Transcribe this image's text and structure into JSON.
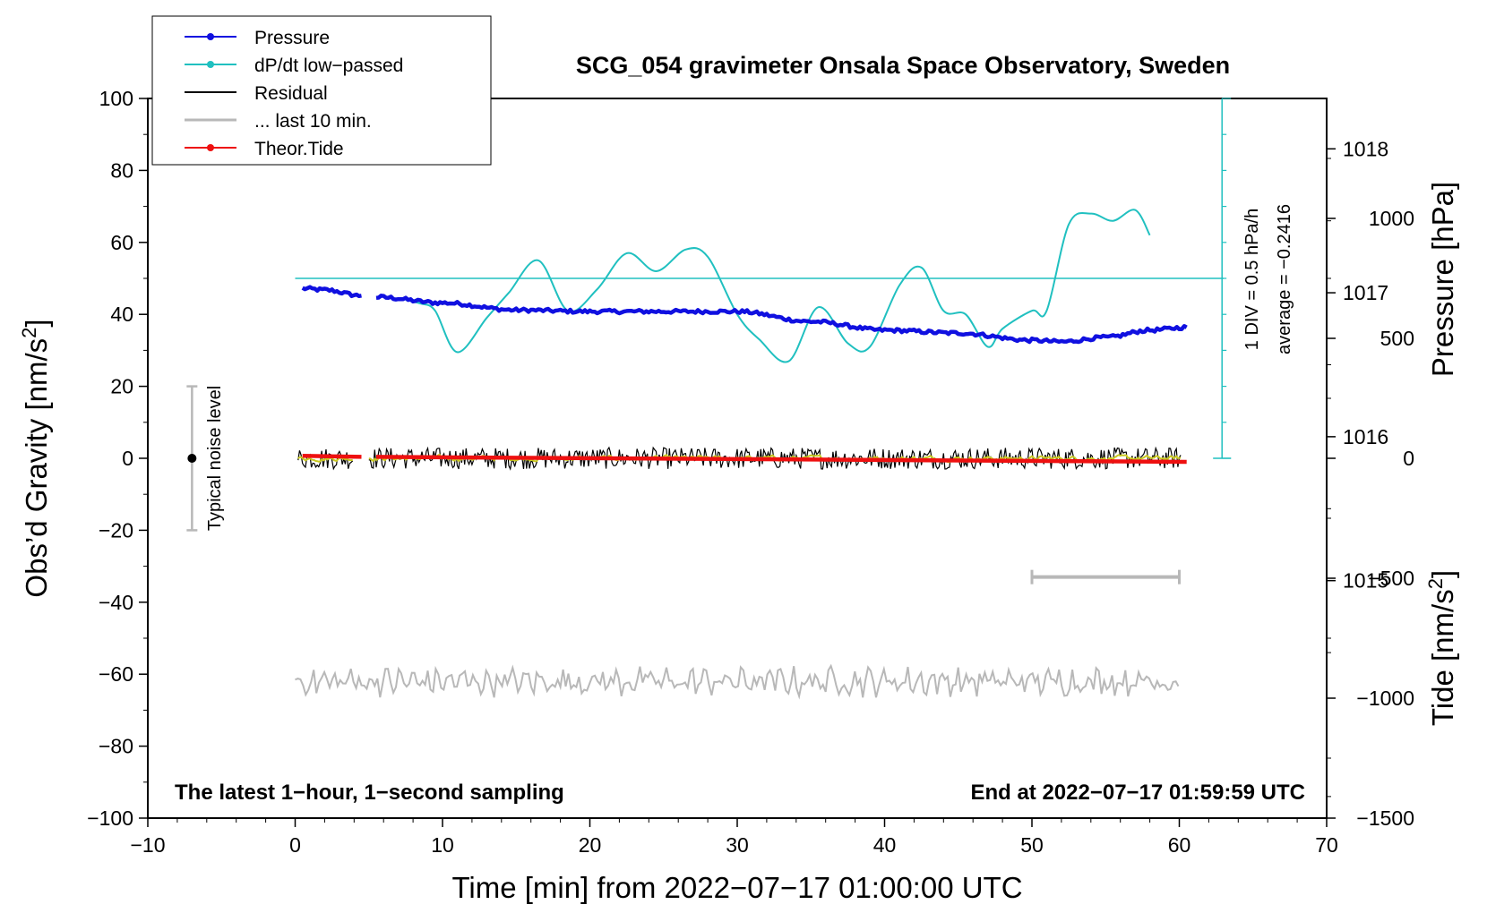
{
  "chart_data": {
    "type": "line",
    "title": "SCG_054 gravimeter Onsala Space Observatory, Sweden",
    "xlabel": "Time [min] from 2022−07−17 01:00:00 UTC",
    "ylabel_left": "Obs’d Gravity [nm/s",
    "ylabel_left_sup": "2",
    "ylabel_left_end": "]",
    "ylabel_right_pressure": "Pressure [hPa]",
    "ylabel_right_tide": "Tide [nm/s",
    "ylabel_right_tide_sup": "2",
    "ylabel_right_tide_end": "]",
    "xlim": [
      -10,
      70
    ],
    "ylim": [
      -100,
      100
    ],
    "pressure_lim": [
      1013.35,
      1018.35
    ],
    "tide_lim": [
      -1500,
      1500
    ],
    "x_ticks": [
      {
        "v": -10,
        "t": "−10"
      },
      {
        "v": 0,
        "t": "0"
      },
      {
        "v": 10,
        "t": "10"
      },
      {
        "v": 20,
        "t": "20"
      },
      {
        "v": 30,
        "t": "30"
      },
      {
        "v": 40,
        "t": "40"
      },
      {
        "v": 50,
        "t": "50"
      },
      {
        "v": 60,
        "t": "60"
      },
      {
        "v": 70,
        "t": "70"
      }
    ],
    "y_ticks": [
      {
        "v": 100,
        "t": "100"
      },
      {
        "v": 80,
        "t": "80"
      },
      {
        "v": 60,
        "t": "60"
      },
      {
        "v": 40,
        "t": "40"
      },
      {
        "v": 20,
        "t": "20"
      },
      {
        "v": 0,
        "t": "0"
      },
      {
        "v": -20,
        "t": "−20"
      },
      {
        "v": -40,
        "t": "−40"
      },
      {
        "v": -60,
        "t": "−60"
      },
      {
        "v": -80,
        "t": "−80"
      },
      {
        "v": -100,
        "t": "−100"
      }
    ],
    "pressure_ticks": [
      {
        "v": 1018,
        "t": "1018"
      },
      {
        "v": 1017,
        "t": "1017"
      },
      {
        "v": 1016,
        "t": "1016"
      },
      {
        "v": 1015,
        "t": "1015"
      }
    ],
    "tide_ticks": [
      {
        "v": 1000,
        "t": "1000"
      },
      {
        "v": 500,
        "t": "500"
      },
      {
        "v": 0,
        "t": "0"
      },
      {
        "v": -500,
        "t": "−500"
      },
      {
        "v": -1000,
        "t": "−1000"
      },
      {
        "v": -1500,
        "t": "−1500"
      }
    ],
    "legend": {
      "placement": "top-left",
      "entries": [
        {
          "label": "Pressure",
          "color": "#1010e0",
          "marker": true
        },
        {
          "label": "dP/dt low−passed",
          "color": "#20c0c0",
          "marker": true
        },
        {
          "label": "Residual",
          "color": "#000000",
          "marker": false
        },
        {
          "label": "... last 10 min.",
          "color": "#b8b8b8",
          "marker": false
        },
        {
          "label": "Theor.Tide",
          "color": "#ee1010",
          "marker": true
        }
      ]
    },
    "series": [
      {
        "name": "Pressure",
        "color": "#1010e0",
        "units": "hPa",
        "segments": [
          {
            "x": [
              0.5,
              2,
              4.5
            ],
            "y": [
              1017.03,
              1017.02,
              1016.98
            ]
          },
          {
            "x": [
              5.5,
              10,
              15,
              20,
              25,
              30,
              35,
              40,
              45,
              50,
              52,
              55,
              58,
              60.5
            ],
            "y": [
              1016.97,
              1016.93,
              1016.88,
              1016.87,
              1016.87,
              1016.87,
              1016.8,
              1016.74,
              1016.72,
              1016.67,
              1016.66,
              1016.69,
              1016.74,
              1016.76
            ]
          }
        ]
      },
      {
        "name": "dP/dt low−passed",
        "color": "#20c0c0",
        "units": "nm/s² plot scale (50 = average, 1 DIV = 0.5 hPa/h)",
        "average_line": 50,
        "x": [
          7.5,
          8.5,
          9.5,
          11,
          13,
          14.5,
          16.5,
          18.5,
          20.5,
          22.5,
          24.5,
          26.5,
          28,
          30,
          31.5,
          33.5,
          35.5,
          37.5,
          39,
          41,
          42.5,
          44,
          45.5,
          47,
          48,
          50,
          51,
          52.5,
          54,
          55.5,
          57,
          58
        ],
        "y": [
          44,
          43,
          41,
          29.5,
          39,
          46,
          55,
          41,
          47,
          57,
          52,
          58,
          56,
          40,
          33,
          27,
          42,
          32,
          31,
          48,
          53,
          41,
          40,
          31,
          36,
          41,
          41,
          65,
          68,
          66,
          69,
          62
        ]
      },
      {
        "name": "Residual",
        "color": "#000000",
        "units": "nm/s²",
        "segments": [
          {
            "x_start": 0.2,
            "x_end": 4.0
          },
          {
            "x_start": 5.0,
            "x_end": 60.2
          }
        ],
        "level": 0,
        "noise_amplitude": 3,
        "smoothed_color": "#c8c820"
      },
      {
        "name": "... last 10 min.",
        "color": "#b8b8b8",
        "units": "nm/s² (plotted offset)",
        "x_start": 0,
        "x_end": 60,
        "level": -62,
        "noise_amplitude": 3,
        "bracket": {
          "x_start": 50,
          "x_end": 60,
          "y": -33
        }
      },
      {
        "name": "Theor.Tide",
        "color": "#ee1010",
        "units": "nm/s²",
        "segments": [
          {
            "x": [
              0.5,
              4.5
            ],
            "y": [
              10,
              6
            ]
          },
          {
            "x": [
              5.5,
              60.5
            ],
            "y": [
              6,
              -15
            ]
          }
        ]
      }
    ],
    "noise_level": {
      "x": -7,
      "y": 0,
      "low": -20,
      "high": 20,
      "label": "Typical noise level"
    },
    "dpdt_scale": {
      "label_div": "1 DIV = 0.5 hPa/h",
      "label_avg": "average = −0.2416"
    },
    "annotation_left": "The latest 1−hour, 1−second sampling",
    "annotation_right": "End at 2022−07−17 01:59:59 UTC"
  }
}
